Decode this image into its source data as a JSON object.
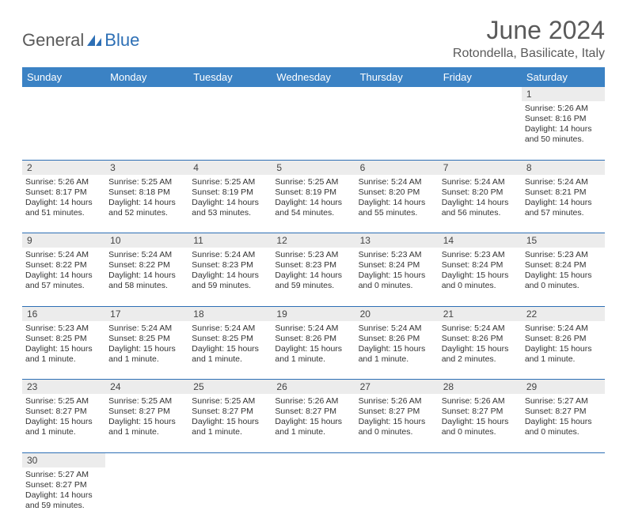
{
  "logo": {
    "part1": "General",
    "part2": "Blue"
  },
  "title": "June 2024",
  "location": "Rotondella, Basilicate, Italy",
  "colors": {
    "header_bg": "#3b82c4",
    "row_border": "#2d6fb5",
    "daynum_bg": "#ececec",
    "text": "#333333",
    "title_text": "#5a5a5a"
  },
  "days_of_week": [
    "Sunday",
    "Monday",
    "Tuesday",
    "Wednesday",
    "Thursday",
    "Friday",
    "Saturday"
  ],
  "weeks": [
    [
      null,
      null,
      null,
      null,
      null,
      null,
      {
        "n": "1",
        "sr": "5:26 AM",
        "ss": "8:16 PM",
        "dl": "14 hours and 50 minutes."
      }
    ],
    [
      {
        "n": "2",
        "sr": "5:26 AM",
        "ss": "8:17 PM",
        "dl": "14 hours and 51 minutes."
      },
      {
        "n": "3",
        "sr": "5:25 AM",
        "ss": "8:18 PM",
        "dl": "14 hours and 52 minutes."
      },
      {
        "n": "4",
        "sr": "5:25 AM",
        "ss": "8:19 PM",
        "dl": "14 hours and 53 minutes."
      },
      {
        "n": "5",
        "sr": "5:25 AM",
        "ss": "8:19 PM",
        "dl": "14 hours and 54 minutes."
      },
      {
        "n": "6",
        "sr": "5:24 AM",
        "ss": "8:20 PM",
        "dl": "14 hours and 55 minutes."
      },
      {
        "n": "7",
        "sr": "5:24 AM",
        "ss": "8:20 PM",
        "dl": "14 hours and 56 minutes."
      },
      {
        "n": "8",
        "sr": "5:24 AM",
        "ss": "8:21 PM",
        "dl": "14 hours and 57 minutes."
      }
    ],
    [
      {
        "n": "9",
        "sr": "5:24 AM",
        "ss": "8:22 PM",
        "dl": "14 hours and 57 minutes."
      },
      {
        "n": "10",
        "sr": "5:24 AM",
        "ss": "8:22 PM",
        "dl": "14 hours and 58 minutes."
      },
      {
        "n": "11",
        "sr": "5:24 AM",
        "ss": "8:23 PM",
        "dl": "14 hours and 59 minutes."
      },
      {
        "n": "12",
        "sr": "5:23 AM",
        "ss": "8:23 PM",
        "dl": "14 hours and 59 minutes."
      },
      {
        "n": "13",
        "sr": "5:23 AM",
        "ss": "8:24 PM",
        "dl": "15 hours and 0 minutes."
      },
      {
        "n": "14",
        "sr": "5:23 AM",
        "ss": "8:24 PM",
        "dl": "15 hours and 0 minutes."
      },
      {
        "n": "15",
        "sr": "5:23 AM",
        "ss": "8:24 PM",
        "dl": "15 hours and 0 minutes."
      }
    ],
    [
      {
        "n": "16",
        "sr": "5:23 AM",
        "ss": "8:25 PM",
        "dl": "15 hours and 1 minute."
      },
      {
        "n": "17",
        "sr": "5:24 AM",
        "ss": "8:25 PM",
        "dl": "15 hours and 1 minute."
      },
      {
        "n": "18",
        "sr": "5:24 AM",
        "ss": "8:25 PM",
        "dl": "15 hours and 1 minute."
      },
      {
        "n": "19",
        "sr": "5:24 AM",
        "ss": "8:26 PM",
        "dl": "15 hours and 1 minute."
      },
      {
        "n": "20",
        "sr": "5:24 AM",
        "ss": "8:26 PM",
        "dl": "15 hours and 1 minute."
      },
      {
        "n": "21",
        "sr": "5:24 AM",
        "ss": "8:26 PM",
        "dl": "15 hours and 2 minutes."
      },
      {
        "n": "22",
        "sr": "5:24 AM",
        "ss": "8:26 PM",
        "dl": "15 hours and 1 minute."
      }
    ],
    [
      {
        "n": "23",
        "sr": "5:25 AM",
        "ss": "8:27 PM",
        "dl": "15 hours and 1 minute."
      },
      {
        "n": "24",
        "sr": "5:25 AM",
        "ss": "8:27 PM",
        "dl": "15 hours and 1 minute."
      },
      {
        "n": "25",
        "sr": "5:25 AM",
        "ss": "8:27 PM",
        "dl": "15 hours and 1 minute."
      },
      {
        "n": "26",
        "sr": "5:26 AM",
        "ss": "8:27 PM",
        "dl": "15 hours and 1 minute."
      },
      {
        "n": "27",
        "sr": "5:26 AM",
        "ss": "8:27 PM",
        "dl": "15 hours and 0 minutes."
      },
      {
        "n": "28",
        "sr": "5:26 AM",
        "ss": "8:27 PM",
        "dl": "15 hours and 0 minutes."
      },
      {
        "n": "29",
        "sr": "5:27 AM",
        "ss": "8:27 PM",
        "dl": "15 hours and 0 minutes."
      }
    ],
    [
      {
        "n": "30",
        "sr": "5:27 AM",
        "ss": "8:27 PM",
        "dl": "14 hours and 59 minutes."
      },
      null,
      null,
      null,
      null,
      null,
      null
    ]
  ],
  "labels": {
    "sunrise": "Sunrise:",
    "sunset": "Sunset:",
    "daylight": "Daylight:"
  }
}
